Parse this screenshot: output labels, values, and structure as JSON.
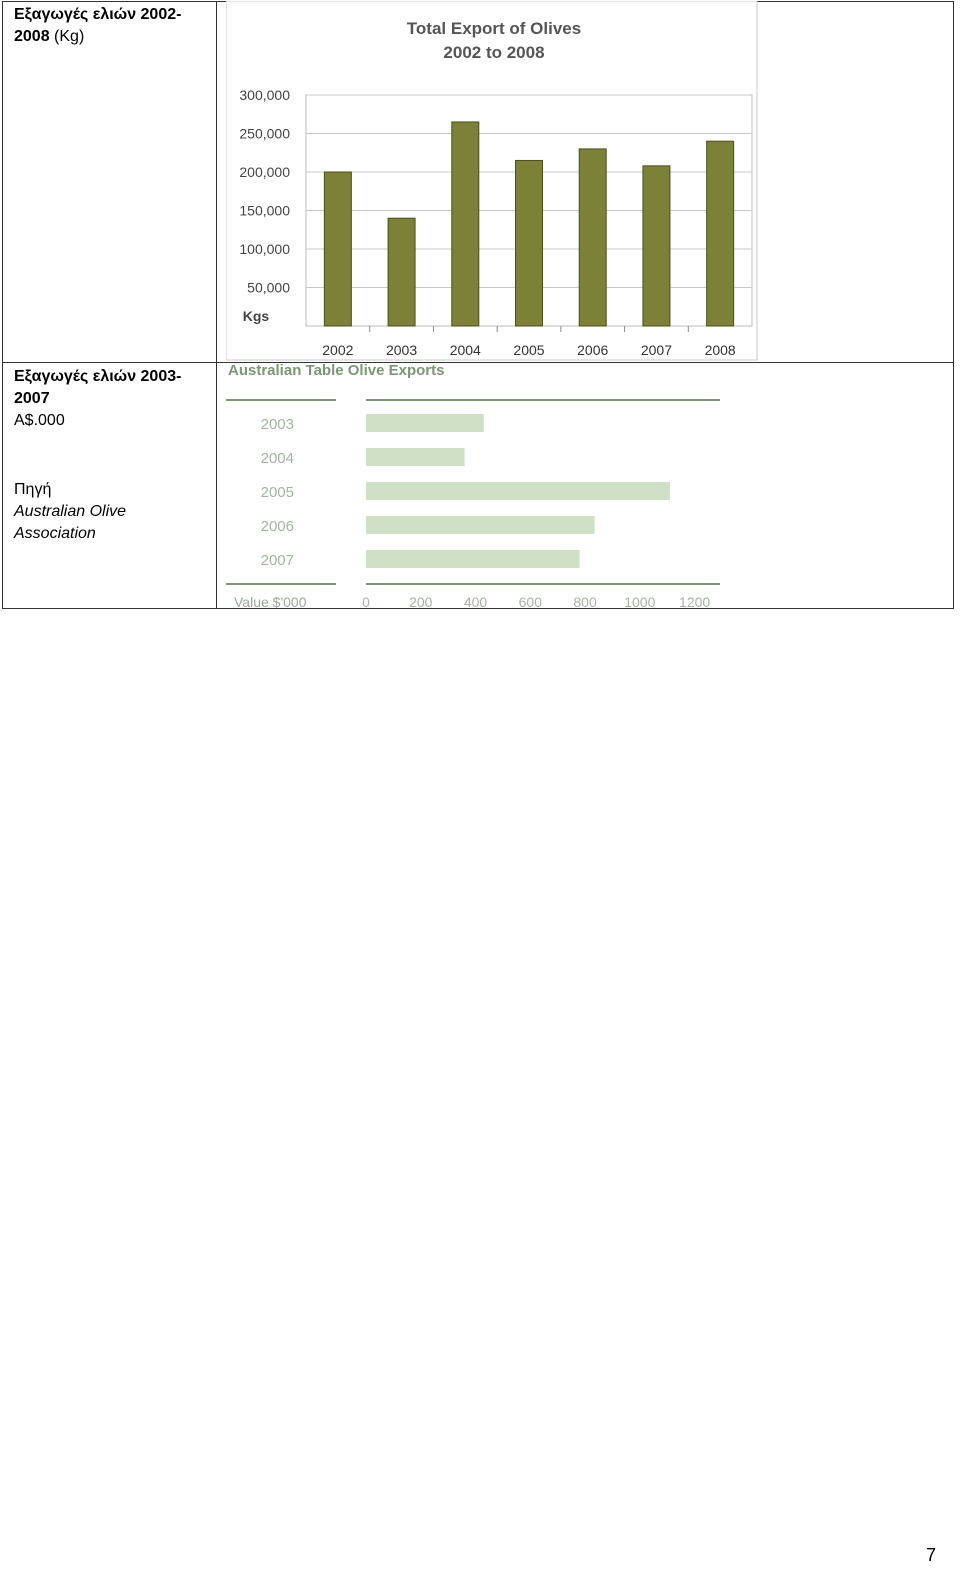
{
  "rows": [
    {
      "label_bold": "Εξαγωγές ελιών 2002-2008",
      "label_unit": " (Kg)"
    },
    {
      "label_bold": "Εξαγωγές ελιών 2003-2007",
      "label_unit": "A$.000",
      "source_label": "Πηγή",
      "source_name": "Australian Olive Association"
    }
  ],
  "page_number": "7",
  "colors": {
    "olive": "#7b8238",
    "light_green": "#cfe0c6",
    "axis_green": "#7d9675"
  },
  "chart_data": [
    {
      "type": "bar",
      "title": "Total Export of Olives",
      "subtitle": "2002 to 2008",
      "ylabel": "Kgs",
      "categories": [
        "2002",
        "2003",
        "2004",
        "2005",
        "2006",
        "2007",
        "2008"
      ],
      "values": [
        200000,
        140000,
        265000,
        215000,
        230000,
        208000,
        240000
      ],
      "yticks": [
        "50,000",
        "100,000",
        "150,000",
        "200,000",
        "250,000",
        "300,000"
      ],
      "ylim": [
        0,
        300000
      ],
      "grid": true
    },
    {
      "type": "bar",
      "orientation": "horizontal",
      "title": "Australian Table Olive Exports",
      "xlabel": "Value $'000",
      "categories": [
        "2003",
        "2004",
        "2005",
        "2006",
        "2007"
      ],
      "values": [
        430,
        360,
        1110,
        835,
        780
      ],
      "xticks": [
        "0",
        "200",
        "400",
        "600",
        "800",
        "1000",
        "1200"
      ],
      "xlim": [
        0,
        1300
      ]
    }
  ]
}
